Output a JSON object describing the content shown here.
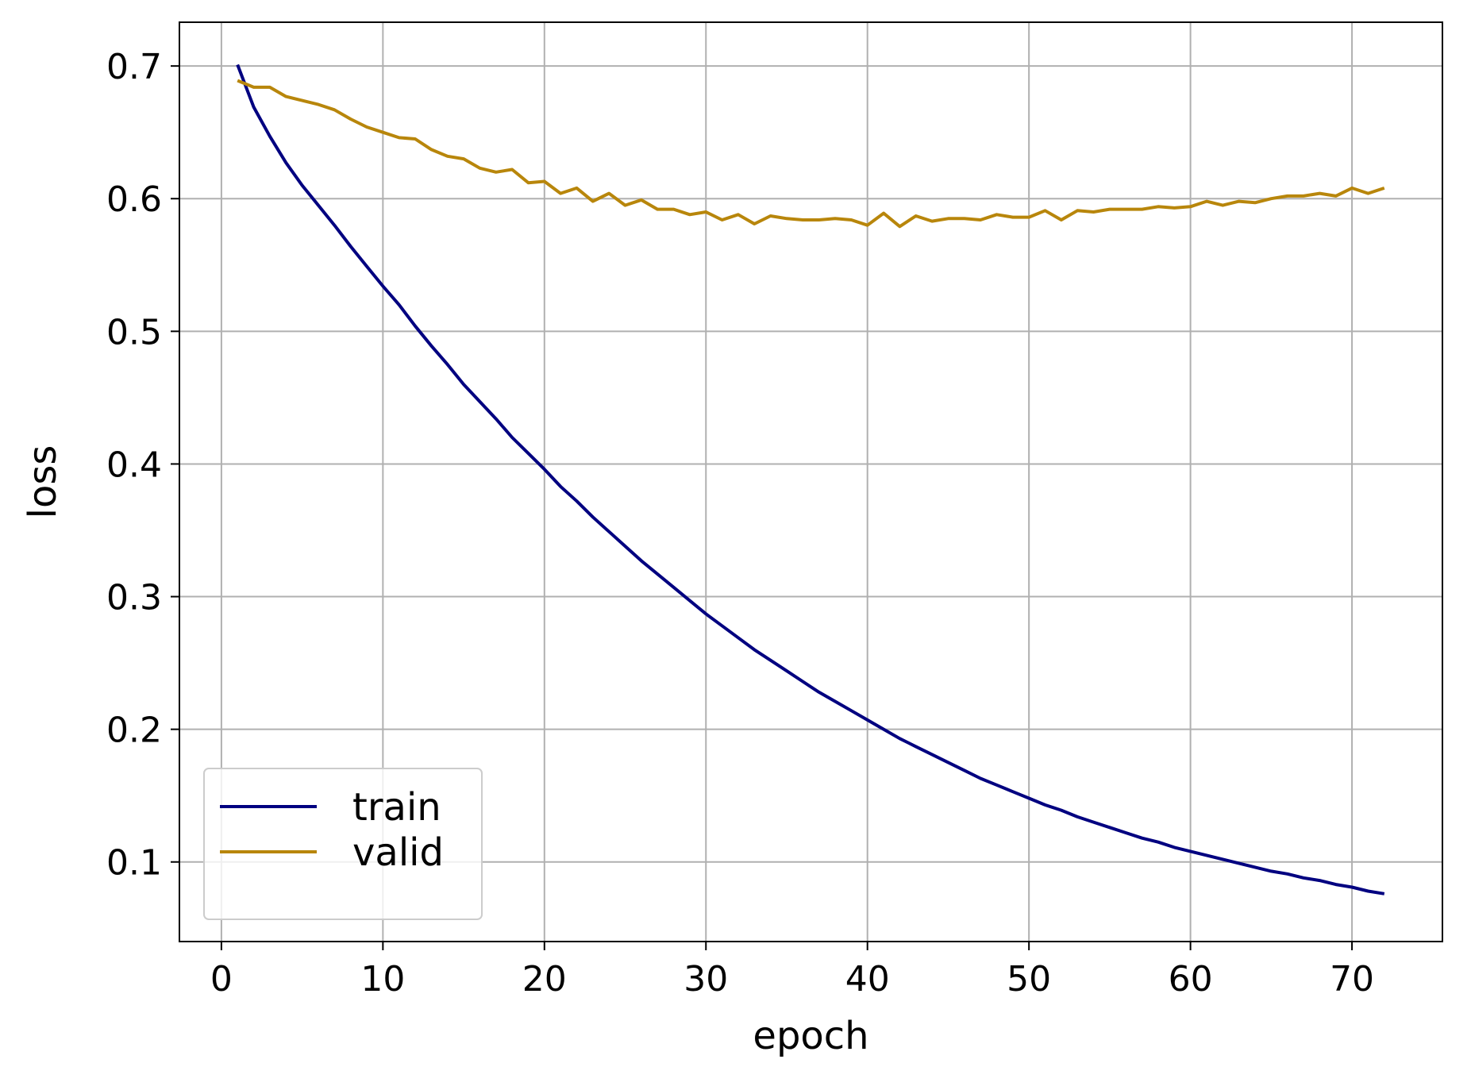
{
  "chart_data": {
    "type": "line",
    "xlabel": "epoch",
    "ylabel": "loss",
    "xlim": [
      -2.6,
      75.6
    ],
    "ylim": [
      0.04,
      0.733
    ],
    "xticks": [
      0,
      10,
      20,
      30,
      40,
      50,
      60,
      70
    ],
    "yticks": [
      0.1,
      0.2,
      0.3,
      0.4,
      0.5,
      0.6,
      0.7
    ],
    "xtick_labels": [
      "0",
      "10",
      "20",
      "30",
      "40",
      "50",
      "60",
      "70"
    ],
    "ytick_labels": [
      "0.1",
      "0.2",
      "0.3",
      "0.4",
      "0.5",
      "0.6",
      "0.7"
    ],
    "grid": true,
    "legend_position": "lower-left",
    "x": [
      1,
      2,
      3,
      4,
      5,
      6,
      7,
      8,
      9,
      10,
      11,
      12,
      13,
      14,
      15,
      16,
      17,
      18,
      19,
      20,
      21,
      22,
      23,
      24,
      25,
      26,
      27,
      28,
      29,
      30,
      31,
      32,
      33,
      34,
      35,
      36,
      37,
      38,
      39,
      40,
      41,
      42,
      43,
      44,
      45,
      46,
      47,
      48,
      49,
      50,
      51,
      52,
      53,
      54,
      55,
      56,
      57,
      58,
      59,
      60,
      61,
      62,
      63,
      64,
      65,
      66,
      67,
      68,
      69,
      70,
      71,
      72
    ],
    "series": [
      {
        "name": "train",
        "color": "#000080",
        "values": [
          0.701,
          0.669,
          0.647,
          0.627,
          0.61,
          0.595,
          0.58,
          0.564,
          0.549,
          0.534,
          0.52,
          0.504,
          0.489,
          0.475,
          0.46,
          0.447,
          0.434,
          0.42,
          0.408,
          0.396,
          0.383,
          0.372,
          0.36,
          0.349,
          0.338,
          0.327,
          0.317,
          0.307,
          0.297,
          0.287,
          0.278,
          0.269,
          0.26,
          0.252,
          0.244,
          0.236,
          0.228,
          0.221,
          0.214,
          0.207,
          0.2,
          0.193,
          0.187,
          0.181,
          0.175,
          0.169,
          0.163,
          0.158,
          0.153,
          0.148,
          0.143,
          0.139,
          0.134,
          0.13,
          0.126,
          0.122,
          0.118,
          0.115,
          0.111,
          0.108,
          0.105,
          0.102,
          0.099,
          0.096,
          0.093,
          0.091,
          0.088,
          0.086,
          0.083,
          0.081,
          0.078,
          0.076
        ]
      },
      {
        "name": "valid",
        "color": "#b8860b",
        "values": [
          0.689,
          0.684,
          0.684,
          0.677,
          0.674,
          0.671,
          0.667,
          0.66,
          0.654,
          0.65,
          0.646,
          0.645,
          0.637,
          0.632,
          0.63,
          0.623,
          0.62,
          0.622,
          0.612,
          0.613,
          0.604,
          0.608,
          0.598,
          0.604,
          0.595,
          0.599,
          0.592,
          0.592,
          0.588,
          0.59,
          0.584,
          0.588,
          0.581,
          0.587,
          0.585,
          0.584,
          0.584,
          0.585,
          0.584,
          0.58,
          0.589,
          0.579,
          0.587,
          0.583,
          0.585,
          0.585,
          0.584,
          0.588,
          0.586,
          0.586,
          0.591,
          0.584,
          0.591,
          0.59,
          0.592,
          0.592,
          0.592,
          0.594,
          0.593,
          0.594,
          0.598,
          0.595,
          0.598,
          0.597,
          0.6,
          0.602,
          0.602,
          0.604,
          0.602,
          0.608,
          0.604,
          0.608
        ]
      }
    ]
  }
}
